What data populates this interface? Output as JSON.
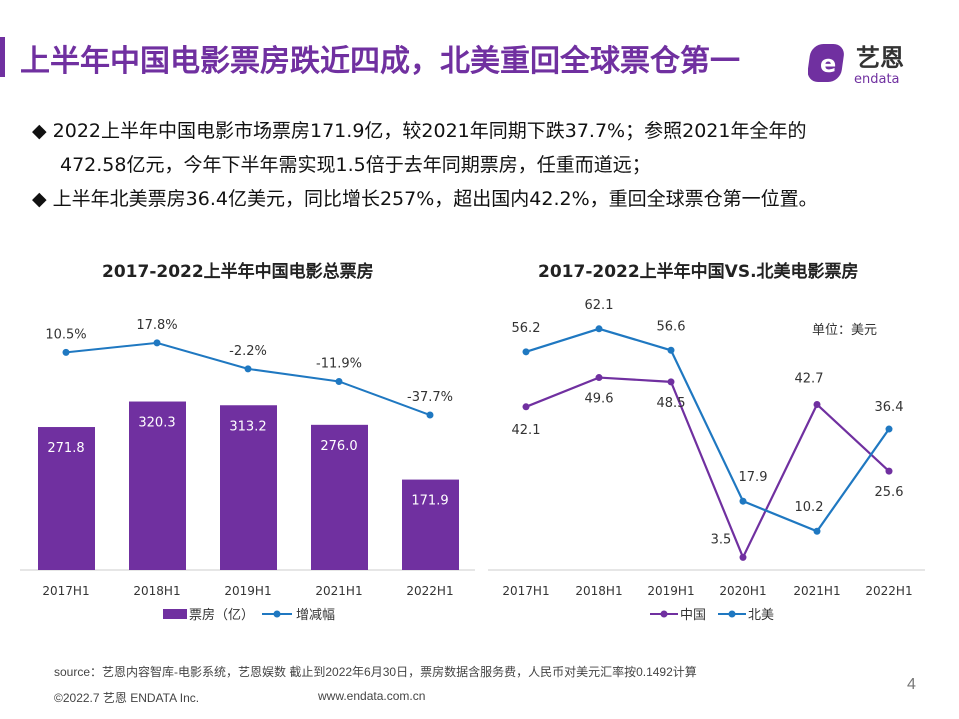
{
  "header": {
    "title": "上半年中国电影票房跌近四成，北美重回全球票仓第一",
    "logo_cn": "艺恩",
    "logo_en": "endata"
  },
  "bullets": [
    {
      "lines": [
        "2022上半年中国电影市场票房171.9亿，较2021年同期下跌37.7%；参照2021年全年的",
        "472.58亿元，今年下半年需实现1.5倍于去年同期票房，任重而道远；"
      ]
    },
    {
      "lines": [
        "上半年北美票房36.4亿美元，同比增长257%，超出国内42.2%，重回全球票仓第一位置。"
      ]
    }
  ],
  "colors": {
    "purple": "#7030a0",
    "blue": "#1f78c1"
  },
  "chart_data": [
    {
      "type": "bar",
      "title": "2017-2022上半年中国电影总票房",
      "categories": [
        "2017H1",
        "2018H1",
        "2019H1",
        "2021H1",
        "2022H1"
      ],
      "series": [
        {
          "name": "票房（亿）",
          "type": "bar",
          "values": [
            271.8,
            320.3,
            313.2,
            276.0,
            171.9
          ],
          "labels": [
            "271.8",
            "320.3",
            "313.2",
            "276.0",
            "171.9"
          ]
        },
        {
          "name": "增减幅",
          "type": "line",
          "values": [
            10.5,
            17.8,
            -2.2,
            -11.9,
            -37.7
          ],
          "labels": [
            "10.5%",
            "17.8%",
            "-2.2%",
            "-11.9%",
            "-37.7%"
          ]
        }
      ],
      "legend": "bottom",
      "grid": false
    },
    {
      "type": "line",
      "title": "2017-2022上半年中国VS.北美电影票房",
      "unit": "单位：美元",
      "categories": [
        "2017H1",
        "2018H1",
        "2019H1",
        "2020H1",
        "2021H1",
        "2022H1"
      ],
      "series": [
        {
          "name": "中国",
          "values": [
            42.1,
            49.6,
            48.5,
            3.5,
            42.7,
            25.6
          ],
          "labels": [
            "42.1",
            "49.6",
            "48.5",
            "3.5",
            "42.7",
            "25.6"
          ]
        },
        {
          "name": "北美",
          "values": [
            56.2,
            62.1,
            56.6,
            17.9,
            10.2,
            36.4
          ],
          "labels": [
            "56.2",
            "62.1",
            "56.6",
            "17.9",
            "10.2",
            "36.4"
          ]
        }
      ],
      "legend": "bottom",
      "grid": false
    }
  ],
  "footer": {
    "source": "source：艺恩内容智库-电影系统，艺恩娱数     截止到2022年6月30日，票房数据含服务费，人民币对美元汇率按0.1492计算",
    "copyright": "©2022.7 艺恩 ENDATA Inc.",
    "url": "www.endata.com.cn",
    "page": "4"
  }
}
